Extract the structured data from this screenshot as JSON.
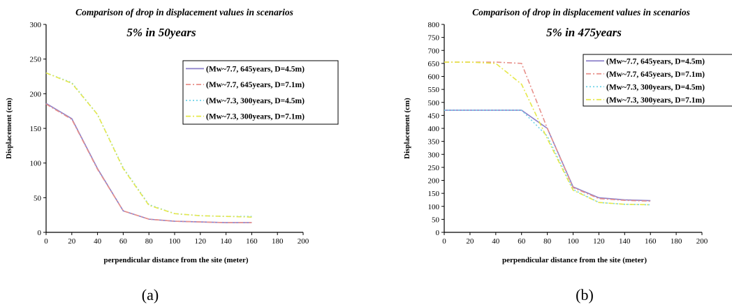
{
  "chart_data": [
    {
      "type": "line",
      "panel_label": "(a)",
      "title": "Comparison of drop in displacement values in scenarios",
      "subtitle": "5% in 50years",
      "xlabel": "perpendicular distance from the site (meter)",
      "ylabel": "Displacement (cm)",
      "xlim": [
        0,
        200
      ],
      "ylim": [
        0,
        300
      ],
      "xticks": [
        0,
        20,
        40,
        60,
        80,
        100,
        120,
        140,
        160,
        180,
        200
      ],
      "yticks": [
        0,
        50,
        100,
        150,
        200,
        250,
        300
      ],
      "grid": false,
      "legend_position": "top-right",
      "x": [
        0,
        20,
        40,
        60,
        80,
        100,
        120,
        140,
        160
      ],
      "series": [
        {
          "name": "(Mw~7.7, 645years, D=4.5m)",
          "color": "#8b7fc9",
          "dash": "solid",
          "values": [
            186,
            164,
            92,
            31,
            19,
            16,
            15,
            14,
            14
          ]
        },
        {
          "name": "(Mw~7.7, 645years, D=7.1m)",
          "color": "#e8908a",
          "dash": "dashdot",
          "values": [
            185,
            163,
            91,
            31,
            19,
            16,
            15,
            14,
            14
          ]
        },
        {
          "name": "(Mw~7.3, 300years, D=4.5m)",
          "color": "#6fd3e8",
          "dash": "dot",
          "values": [
            230,
            216,
            170,
            93,
            40,
            27,
            24,
            23,
            23
          ]
        },
        {
          "name": "(Mw~7.3, 300years, D=7.1m)",
          "color": "#e6e84a",
          "dash": "dashdot",
          "values": [
            230,
            215,
            170,
            92,
            39,
            27,
            24,
            23,
            22
          ]
        }
      ]
    },
    {
      "type": "line",
      "panel_label": "(b)",
      "title": "Comparison of drop in displacement values in scenarios",
      "subtitle": "5% in 475years",
      "xlabel": "perpendicular distance from the site (meter)",
      "ylabel": "Displacement (cm)",
      "xlim": [
        0,
        200
      ],
      "ylim": [
        0,
        800
      ],
      "xticks": [
        0,
        20,
        40,
        60,
        80,
        100,
        120,
        140,
        160,
        180,
        200
      ],
      "yticks": [
        0,
        50,
        100,
        150,
        200,
        250,
        300,
        350,
        400,
        450,
        500,
        550,
        600,
        650,
        700,
        750,
        800
      ],
      "grid": false,
      "legend_position": "top-right",
      "x": [
        0,
        20,
        40,
        60,
        80,
        100,
        120,
        140,
        160
      ],
      "series": [
        {
          "name": "(Mw~7.7, 645years, D=4.5m)",
          "color": "#8b7fc9",
          "dash": "solid",
          "values": [
            470,
            470,
            470,
            470,
            400,
            175,
            133,
            125,
            122
          ]
        },
        {
          "name": "(Mw~7.7, 645years, D=7.1m)",
          "color": "#e8908a",
          "dash": "dashdot",
          "values": [
            655,
            655,
            655,
            650,
            400,
            172,
            130,
            123,
            120
          ]
        },
        {
          "name": "(Mw~7.3, 300years, D=4.5m)",
          "color": "#6fd3e8",
          "dash": "dot",
          "values": [
            470,
            470,
            470,
            470,
            370,
            165,
            115,
            108,
            106
          ]
        },
        {
          "name": "(Mw~7.3, 300years, D=7.1m)",
          "color": "#e6e84a",
          "dash": "dashdot",
          "values": [
            655,
            655,
            650,
            570,
            360,
            162,
            115,
            108,
            106
          ]
        }
      ]
    }
  ]
}
